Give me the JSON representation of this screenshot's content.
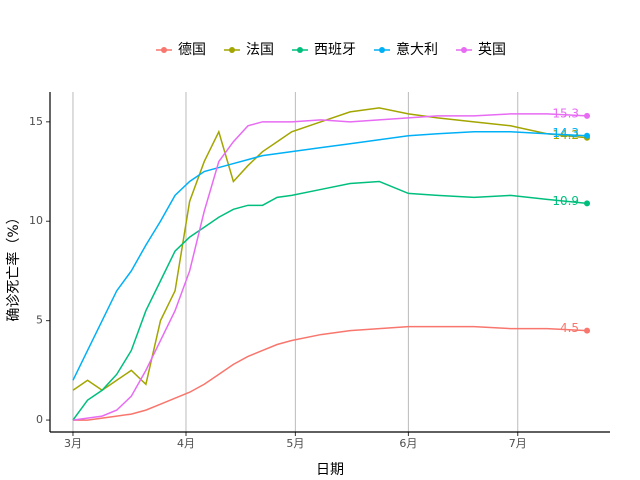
{
  "chart_data": {
    "type": "line",
    "x_label": "日期",
    "y_label": "确诊死亡率（%）",
    "x": [
      0,
      4,
      8,
      12,
      16,
      20,
      24,
      28,
      32,
      36,
      40,
      44,
      48,
      52,
      56,
      60,
      68,
      76,
      84,
      92,
      100,
      110,
      120,
      130,
      141
    ],
    "xlim": [
      -6.3,
      147.3
    ],
    "xticks": [
      {
        "value": 0,
        "label": "3月"
      },
      {
        "value": 31,
        "label": "4月"
      },
      {
        "value": 61,
        "label": "5月"
      },
      {
        "value": 92,
        "label": "6月"
      },
      {
        "value": 122,
        "label": "7月"
      }
    ],
    "ylim": [
      -0.6,
      16.5
    ],
    "yticks": [
      0,
      5,
      10,
      15
    ],
    "grid": "x",
    "legend": "top",
    "series": [
      {
        "name": "德国",
        "color": "#F8766D",
        "values": [
          0,
          0,
          0.1,
          0.2,
          0.3,
          0.5,
          0.8,
          1.1,
          1.4,
          1.8,
          2.3,
          2.8,
          3.2,
          3.5,
          3.8,
          4.0,
          4.3,
          4.5,
          4.6,
          4.7,
          4.7,
          4.7,
          4.6,
          4.6,
          4.5
        ]
      },
      {
        "name": "法国",
        "color": "#A3A500",
        "values": [
          1.5,
          2,
          1.5,
          2,
          2.5,
          1.8,
          5,
          6.5,
          11,
          13,
          14.5,
          12,
          12.8,
          13.5,
          14,
          14.5,
          15,
          15.5,
          15.7,
          15.4,
          15.2,
          15,
          14.8,
          14.4,
          14.2
        ]
      },
      {
        "name": "西班牙",
        "color": "#00BF7D",
        "values": [
          0,
          1,
          1.5,
          2.3,
          3.5,
          5.5,
          7,
          8.5,
          9.2,
          9.7,
          10.2,
          10.6,
          10.8,
          10.8,
          11.2,
          11.3,
          11.6,
          11.9,
          12,
          11.4,
          11.3,
          11.2,
          11.3,
          11.1,
          10.9
        ]
      },
      {
        "name": "意大利",
        "color": "#00B0F6",
        "values": [
          2,
          3.5,
          5,
          6.5,
          7.5,
          8.8,
          10,
          11.3,
          12,
          12.5,
          12.7,
          12.9,
          13.1,
          13.3,
          13.4,
          13.5,
          13.7,
          13.9,
          14.1,
          14.3,
          14.4,
          14.5,
          14.5,
          14.4,
          14.3
        ]
      },
      {
        "name": "英国",
        "color": "#E76BF3",
        "values": [
          0,
          0.1,
          0.2,
          0.5,
          1.2,
          2.5,
          4,
          5.5,
          7.5,
          10.5,
          13,
          14,
          14.8,
          15,
          15,
          15,
          15.1,
          15,
          15.1,
          15.2,
          15.3,
          15.3,
          15.4,
          15.4,
          15.3
        ]
      }
    ]
  }
}
